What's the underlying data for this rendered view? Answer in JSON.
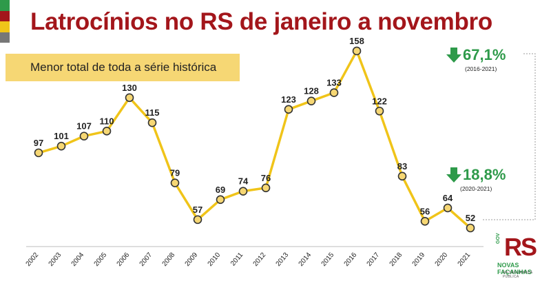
{
  "title": "Latrocínios no RS de janeiro a novembro",
  "subtitle": "Menor total de toda a série histórica",
  "colors": {
    "title": "#a3161b",
    "highlight": "#f6d774",
    "line": "#f0c419",
    "marker_fill": "#f6d774",
    "marker_stroke": "#333333",
    "positive_green": "#2e9a4a",
    "flag": [
      "#2e9a4a",
      "#a3161b",
      "#f0c419",
      "#777777"
    ]
  },
  "stats": [
    {
      "value": "67,1%",
      "range": "(2016-2021)",
      "icon": "arrow-down-icon"
    },
    {
      "value": "18,8%",
      "range": "(2020-2021)",
      "icon": "arrow-down-icon"
    }
  ],
  "logo": {
    "main": "RS",
    "vertical": "GOV",
    "brand": "NOVAS FAÇANHAS",
    "tagline": "NA SEGURANÇA PÚBLICA"
  },
  "chart_data": {
    "type": "line",
    "categories": [
      "2002",
      "2003",
      "2004",
      "2005",
      "2006",
      "2007",
      "2008",
      "2009",
      "2010",
      "2011",
      "2012",
      "2013",
      "2014",
      "2015",
      "2016",
      "2017",
      "2018",
      "2019",
      "2020",
      "2021"
    ],
    "values": [
      97,
      101,
      107,
      110,
      130,
      115,
      79,
      57,
      69,
      74,
      76,
      123,
      128,
      133,
      158,
      122,
      83,
      56,
      64,
      52
    ],
    "title": "Latrocínios no RS de janeiro a novembro",
    "xlabel": "",
    "ylabel": "",
    "grid": false,
    "data_labels": true
  }
}
